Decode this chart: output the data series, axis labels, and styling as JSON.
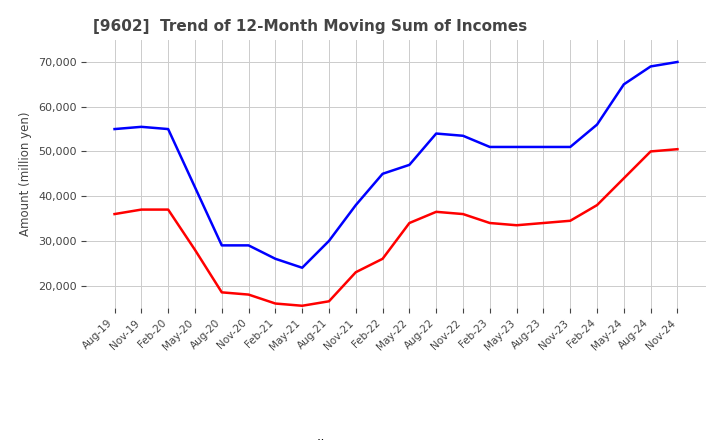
{
  "title": "[9602]  Trend of 12-Month Moving Sum of Incomes",
  "ylabel": "Amount (million yen)",
  "ylim": [
    15000,
    75000
  ],
  "yticks": [
    20000,
    30000,
    40000,
    50000,
    60000,
    70000
  ],
  "x_labels": [
    "Aug-19",
    "Nov-19",
    "Feb-20",
    "May-20",
    "Aug-20",
    "Nov-20",
    "Feb-21",
    "May-21",
    "Aug-21",
    "Nov-21",
    "Feb-22",
    "May-22",
    "Aug-22",
    "Nov-22",
    "Feb-23",
    "May-23",
    "Aug-23",
    "Nov-23",
    "Feb-24",
    "May-24",
    "Aug-24",
    "Nov-24"
  ],
  "ordinary_income": [
    55000,
    55500,
    55000,
    42000,
    29000,
    29000,
    26000,
    24000,
    30000,
    38000,
    45000,
    47000,
    54000,
    53500,
    51000,
    51000,
    51000,
    51000,
    56000,
    65000,
    69000,
    70000
  ],
  "net_income": [
    36000,
    37000,
    37000,
    28000,
    18500,
    18000,
    16000,
    15500,
    16500,
    23000,
    26000,
    34000,
    36500,
    36000,
    34000,
    33500,
    34000,
    34500,
    38000,
    44000,
    50000,
    50500
  ],
  "ordinary_color": "#0000ff",
  "net_color": "#ff0000",
  "background_color": "#ffffff",
  "grid_color": "#cccccc",
  "title_color": "#444444",
  "line_width": 1.8
}
